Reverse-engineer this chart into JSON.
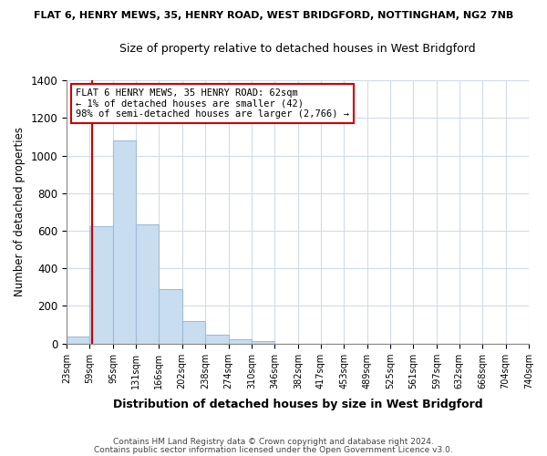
{
  "title_top": "FLAT 6, HENRY MEWS, 35, HENRY ROAD, WEST BRIDGFORD, NOTTINGHAM, NG2 7NB",
  "title_sub": "Size of property relative to detached houses in West Bridgford",
  "xlabel": "Distribution of detached houses by size in West Bridgford",
  "ylabel": "Number of detached properties",
  "bin_edges": [
    23,
    59,
    95,
    131,
    166,
    202,
    238,
    274,
    310,
    346,
    382,
    417,
    453,
    489,
    525,
    561,
    597,
    632,
    668,
    704,
    740
  ],
  "bin_heights": [
    35,
    625,
    1080,
    635,
    290,
    120,
    48,
    22,
    15,
    0,
    0,
    0,
    0,
    0,
    0,
    0,
    0,
    0,
    0,
    0
  ],
  "bar_color": "#c8ddf0",
  "bar_edge_color": "#a0bcd8",
  "property_size": 62,
  "vline_x": 62,
  "vline_color": "#cc0000",
  "annotation_line1": "FLAT 6 HENRY MEWS, 35 HENRY ROAD: 62sqm",
  "annotation_line2": "← 1% of detached houses are smaller (42)",
  "annotation_line3": "98% of semi-detached houses are larger (2,766) →",
  "annotation_box_color": "#ffffff",
  "annotation_box_edge": "#cc0000",
  "ylim": [
    0,
    1400
  ],
  "yticks": [
    0,
    200,
    400,
    600,
    800,
    1000,
    1200,
    1400
  ],
  "tick_labels": [
    "23sqm",
    "59sqm",
    "95sqm",
    "131sqm",
    "166sqm",
    "202sqm",
    "238sqm",
    "274sqm",
    "310sqm",
    "346sqm",
    "382sqm",
    "417sqm",
    "453sqm",
    "489sqm",
    "525sqm",
    "561sqm",
    "597sqm",
    "632sqm",
    "668sqm",
    "704sqm",
    "740sqm"
  ],
  "footnote1": "Contains HM Land Registry data © Crown copyright and database right 2024.",
  "footnote2": "Contains public sector information licensed under the Open Government Licence v3.0.",
  "bg_color": "#ffffff",
  "plot_bg_color": "#ffffff",
  "grid_color": "#d0dce8"
}
